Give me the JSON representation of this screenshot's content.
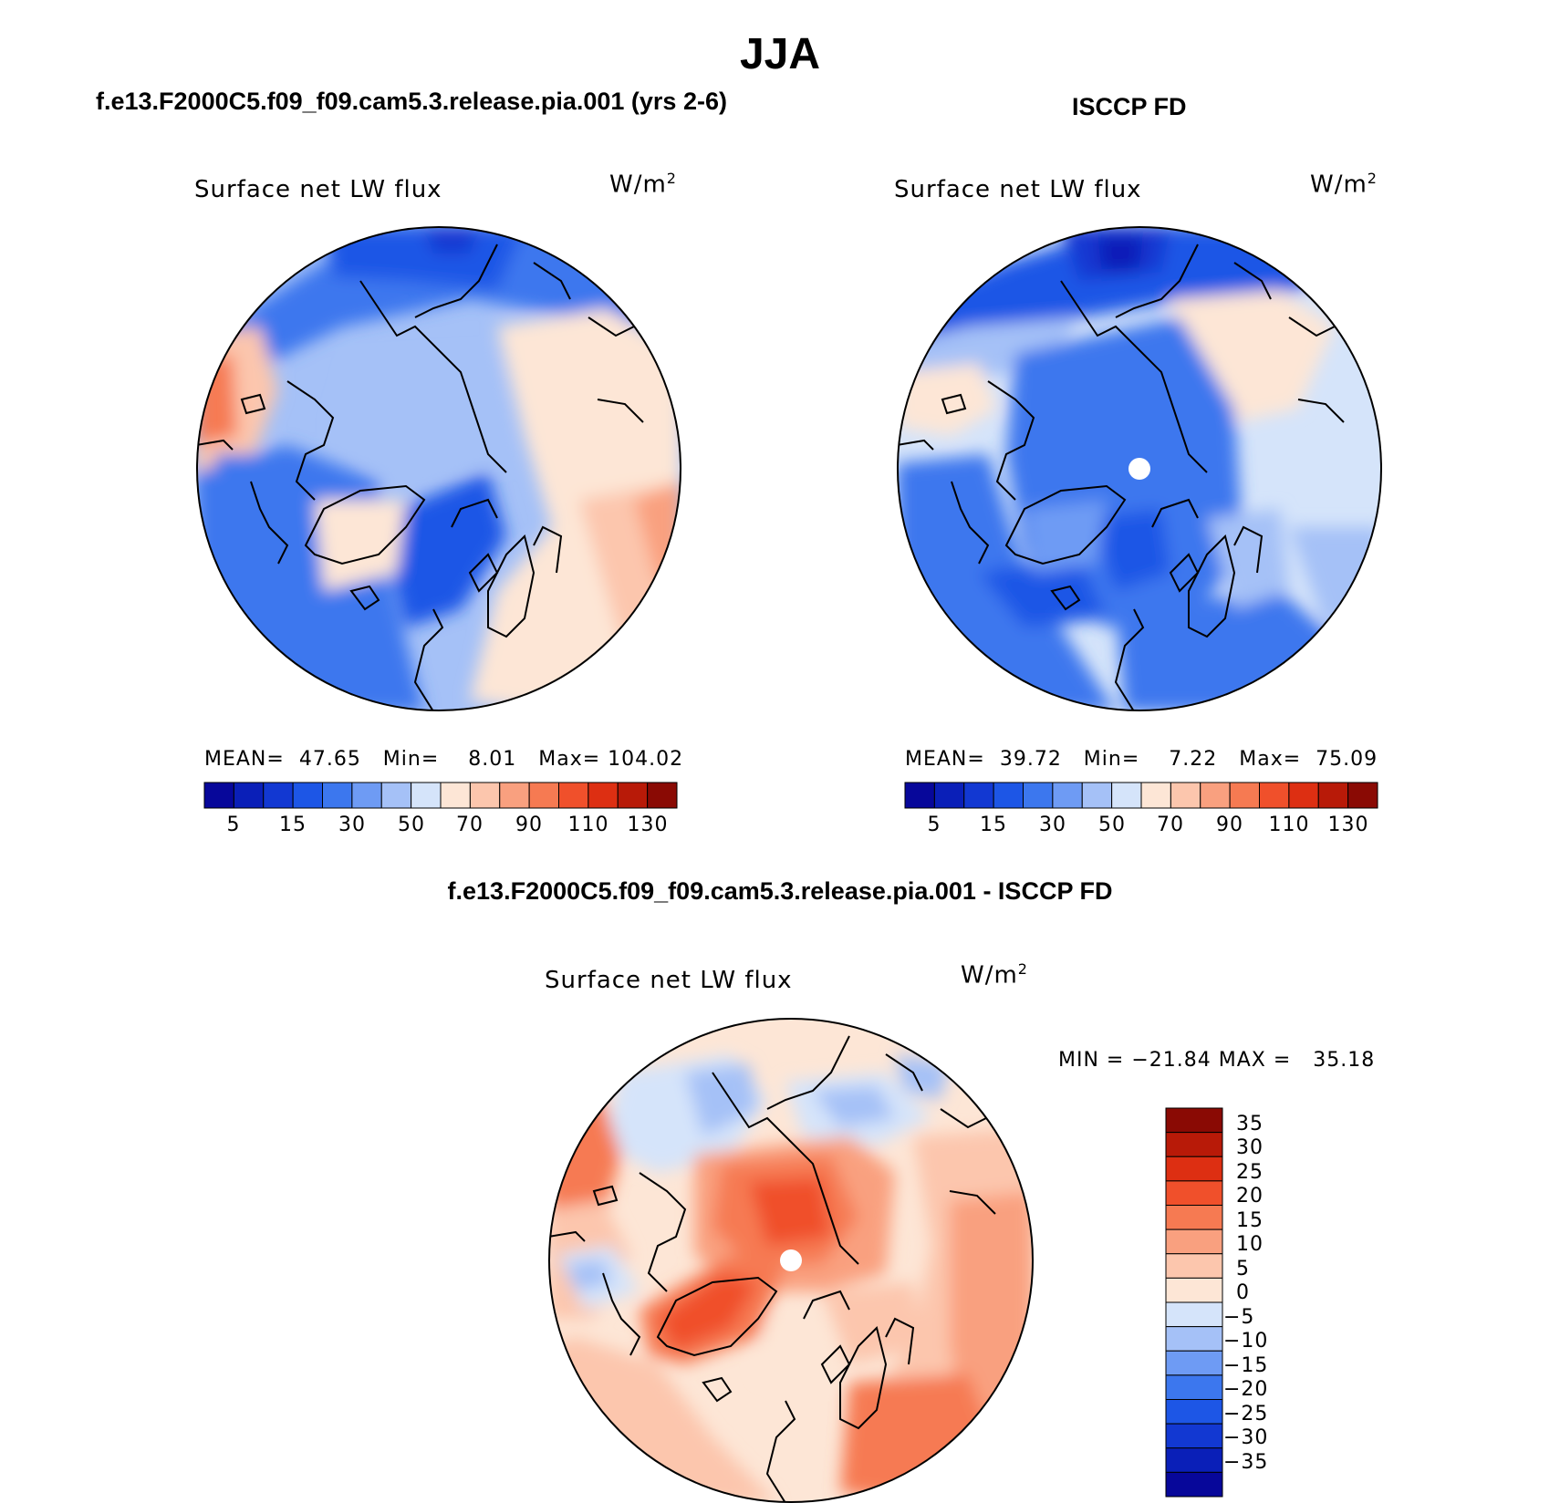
{
  "title": "JJA",
  "left_header": "f.e13.F2000C5.f09_f09.cam5.3.release.pia.001 (yrs 2-6)",
  "right_header": "ISCCP FD",
  "bottom_header": "f.e13.F2000C5.f09_f09.cam5.3.release.pia.001 - ISCCP FD",
  "panels": [
    {
      "title": "Surface net LW flux",
      "unit": "W/m",
      "unit_sup": "2",
      "mean_label": "MEAN=",
      "mean": "47.65",
      "min_label": "Min=",
      "min": "8.01",
      "max_label": "Max=",
      "max": "104.02"
    },
    {
      "title": "Surface net LW flux",
      "unit": "W/m",
      "unit_sup": "2",
      "mean_label": "MEAN=",
      "mean": "39.72",
      "min_label": "Min=",
      "min": "7.22",
      "max_label": "Max=",
      "max": "75.09"
    },
    {
      "title": "Surface net LW flux",
      "unit": "W/m",
      "unit_sup": "2",
      "stats": "MIN = −21.84 MAX =   35.18"
    }
  ],
  "abs_colorbar": {
    "colors": [
      "#07079a",
      "#0a1fb8",
      "#1238d2",
      "#1d56e6",
      "#3c77ee",
      "#6e9bf4",
      "#a5c1f7",
      "#d5e4fa",
      "#fde6d6",
      "#fcc6ad",
      "#f9a07f",
      "#f67a52",
      "#f0502b",
      "#dd2f12",
      "#b81a08",
      "#8a0a04"
    ],
    "ticks": [
      "5",
      "15",
      "30",
      "50",
      "70",
      "90",
      "110",
      "130"
    ]
  },
  "diff_colorbar": {
    "colors": [
      "#8a0a04",
      "#b81a08",
      "#dd2f12",
      "#f0502b",
      "#f67a52",
      "#f9a07f",
      "#fcc6ad",
      "#fde6d6",
      "#d5e4fa",
      "#a5c1f7",
      "#6e9bf4",
      "#3c77ee",
      "#1d56e6",
      "#1238d2",
      "#0a1fb8",
      "#07079a"
    ],
    "ticks": [
      "35",
      "30",
      "25",
      "20",
      "15",
      "10",
      "5",
      "0",
      "−5",
      "−10",
      "−15",
      "−20",
      "−25",
      "−30",
      "−35"
    ]
  }
}
